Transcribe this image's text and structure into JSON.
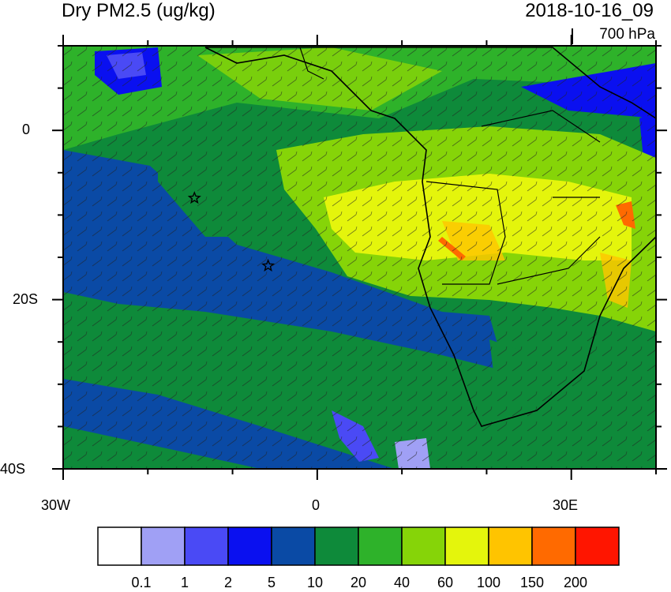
{
  "header": {
    "title": "Dry PM2.5 (ug/kg)",
    "datetime": "2018-10-16_09",
    "level": "700 hPa"
  },
  "axes": {
    "lat_labels": [
      "0",
      "20S",
      "40S"
    ],
    "lon_labels": [
      "30W",
      "0",
      "30E"
    ]
  },
  "map": {
    "markers": [
      {
        "name": "star",
        "lon": -14.5,
        "lat": -8
      },
      {
        "name": "star",
        "lon": -5.8,
        "lat": -16
      }
    ]
  },
  "colorbar": {
    "ticks": [
      "0.1",
      "1",
      "2",
      "5",
      "10",
      "20",
      "40",
      "60",
      "100",
      "150",
      "200"
    ],
    "colors": [
      "#ffffff",
      "#a0a0f5",
      "#4a4af5",
      "#0a10f0",
      "#0a4aa5",
      "#0e8a3a",
      "#2eb22a",
      "#86d408",
      "#e4f50c",
      "#ffc400",
      "#ff6a00",
      "#ff1500"
    ]
  }
}
